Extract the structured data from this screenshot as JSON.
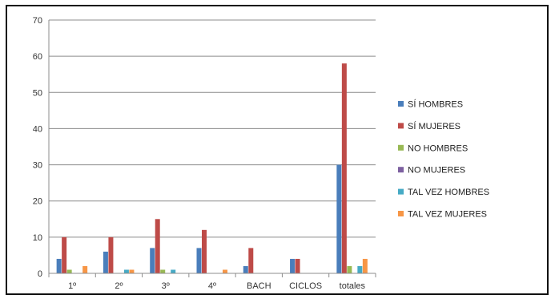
{
  "chart_data": {
    "type": "bar",
    "categories": [
      "1º",
      "2º",
      "3º",
      "4º",
      "BACH",
      "CICLOS",
      "totales"
    ],
    "series": [
      {
        "name": "SÍ HOMBRES",
        "color": "#4a7ebb",
        "values": [
          4,
          6,
          7,
          7,
          2,
          4,
          30
        ]
      },
      {
        "name": "SÍ MUJERES",
        "color": "#be4b48",
        "values": [
          10,
          10,
          15,
          12,
          7,
          4,
          58
        ]
      },
      {
        "name": "NO HOMBRES",
        "color": "#98b954",
        "values": [
          1,
          0,
          1,
          0,
          0,
          0,
          2
        ]
      },
      {
        "name": "NO MUJERES",
        "color": "#7d60a0",
        "values": [
          0,
          0,
          0,
          0,
          0,
          0,
          0
        ]
      },
      {
        "name": "TAL VEZ HOMBRES",
        "color": "#46aac5",
        "values": [
          0,
          1,
          1,
          0,
          0,
          0,
          2
        ]
      },
      {
        "name": "TAL VEZ MUJERES",
        "color": "#f79646",
        "values": [
          2,
          1,
          0,
          1,
          0,
          0,
          4
        ]
      }
    ],
    "y_ticks": [
      0,
      10,
      20,
      30,
      40,
      50,
      60,
      70
    ],
    "ylim": [
      0,
      70
    ],
    "grid": true,
    "legend_position": "right"
  }
}
